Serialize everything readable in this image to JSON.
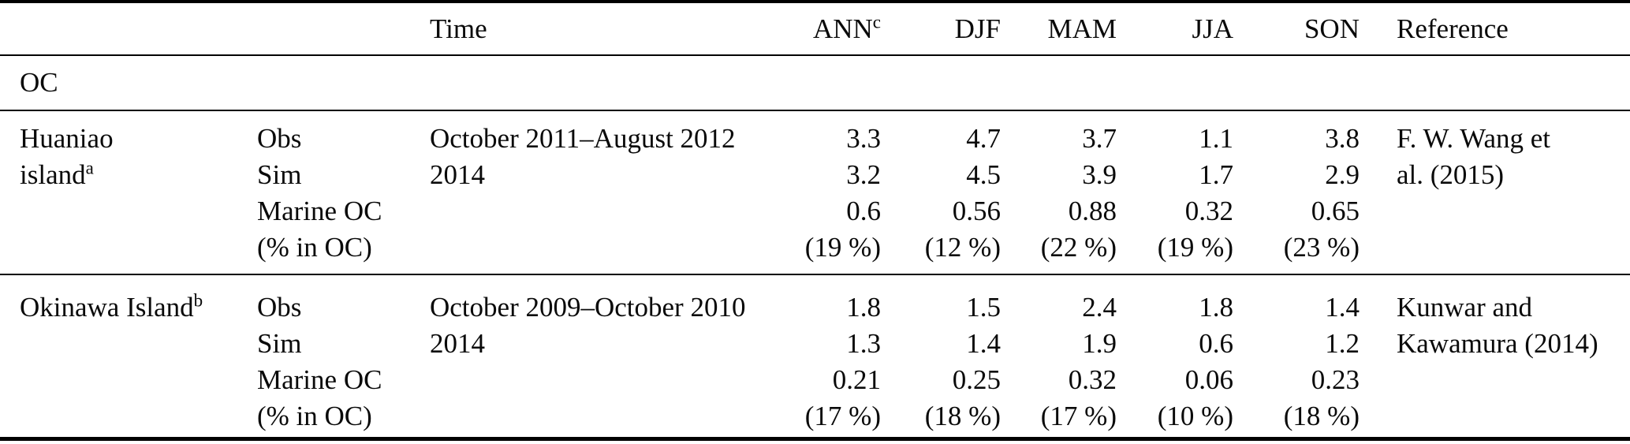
{
  "page": {
    "background": "#ffffff",
    "rule_color": "#000000",
    "text_color": "#0a0a0a"
  },
  "table": {
    "section_label": "OC",
    "headers": {
      "time": "Time",
      "ann": "ANN",
      "ann_sup": "c",
      "djf": "DJF",
      "mam": "MAM",
      "jja": "JJA",
      "son": "SON",
      "reference": "Reference"
    },
    "rows": [
      {
        "location": {
          "line1": "Huaniao",
          "line2": "island",
          "sup": "a"
        },
        "measures": [
          "Obs",
          "Sim",
          "Marine OC",
          "(% in OC)"
        ],
        "time": [
          "October 2011–August 2012",
          "2014"
        ],
        "values": {
          "ann": [
            "3.3",
            "3.2",
            "0.6",
            "(19 %)"
          ],
          "djf": [
            "4.7",
            "4.5",
            "0.56",
            "(12 %)"
          ],
          "mam": [
            "3.7",
            "3.9",
            "0.88",
            "(22 %)"
          ],
          "jja": [
            "1.1",
            "1.7",
            "0.32",
            "(19 %)"
          ],
          "son": [
            "3.8",
            "2.9",
            "0.65",
            "(23 %)"
          ]
        },
        "reference": [
          "F. W. Wang et",
          "al. (2015)"
        ]
      },
      {
        "location": {
          "line1": "Okinawa Island",
          "sup": "b"
        },
        "measures": [
          "Obs",
          "Sim",
          "Marine OC",
          "(% in OC)"
        ],
        "time": [
          "October 2009–October 2010",
          "2014"
        ],
        "values": {
          "ann": [
            "1.8",
            "1.3",
            "0.21",
            "(17 %)"
          ],
          "djf": [
            "1.5",
            "1.4",
            "0.25",
            "(18 %)"
          ],
          "mam": [
            "2.4",
            "1.9",
            "0.32",
            "(17 %)"
          ],
          "jja": [
            "1.8",
            "0.6",
            "0.06",
            "(10 %)"
          ],
          "son": [
            "1.4",
            "1.2",
            "0.23",
            "(18 %)"
          ]
        },
        "reference": [
          "Kunwar and",
          "Kawamura (2014)"
        ]
      }
    ]
  }
}
